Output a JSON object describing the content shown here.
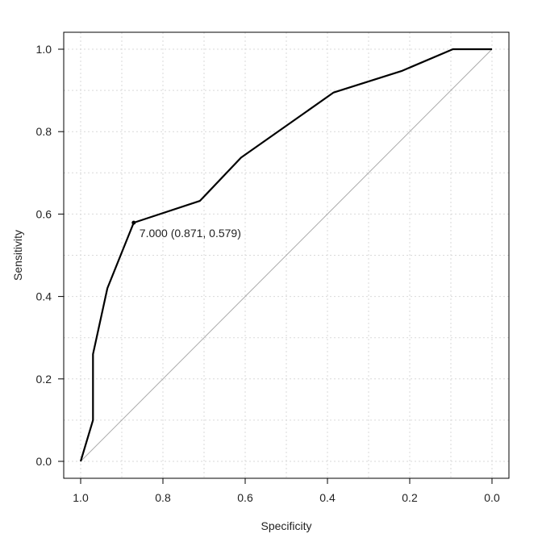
{
  "chart_data": {
    "type": "line",
    "title": "",
    "xlabel": "Specificity",
    "ylabel": "Sensitivity",
    "xlim": [
      1.0,
      0.0
    ],
    "ylim": [
      0.0,
      1.0
    ],
    "x_reversed": true,
    "x_ticks": [
      "1.0",
      "0.8",
      "0.6",
      "0.4",
      "0.2",
      "0.0"
    ],
    "y_ticks": [
      "0.0",
      "0.2",
      "0.4",
      "0.6",
      "0.8",
      "1.0"
    ],
    "grid": true,
    "series": [
      {
        "x": [
          1.0,
          0.97,
          0.97,
          0.935,
          0.871,
          0.71,
          0.61,
          0.385,
          0.22,
          0.095,
          0.0
        ],
        "y": [
          0.0,
          0.1,
          0.26,
          0.42,
          0.579,
          0.632,
          0.737,
          0.895,
          0.947,
          1.0,
          1.0
        ],
        "color": "#000000"
      }
    ],
    "reference_line": {
      "x": [
        1.0,
        0.0
      ],
      "y": [
        0.0,
        1.0
      ],
      "color": "#aaaaaa"
    },
    "highlight_point": {
      "x": 0.871,
      "y": 0.579,
      "label": "7.000 (0.871, 0.579)"
    }
  }
}
